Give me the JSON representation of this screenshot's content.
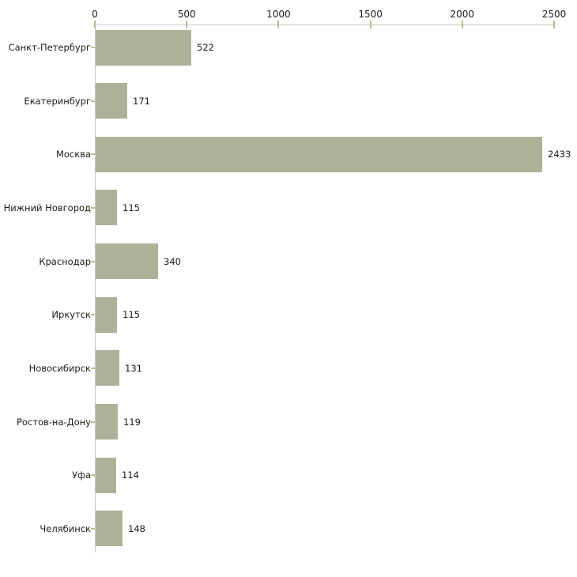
{
  "chart_data": {
    "type": "bar",
    "orientation": "horizontal",
    "title": "",
    "xlabel": "",
    "ylabel": "",
    "categories": [
      "Санкт-Петербург",
      "Екатеринбург",
      "Москва",
      "Нижний Новгород",
      "Краснодар",
      "Иркутск",
      "Новосибирск",
      "Ростов-на-Дону",
      "Уфа",
      "Челябинск"
    ],
    "values": [
      522,
      171,
      2433,
      115,
      340,
      115,
      131,
      119,
      114,
      148
    ],
    "value_labels_shown": true,
    "xlim": [
      0,
      2500
    ],
    "x_ticks": [
      0,
      500,
      1000,
      1500,
      2000,
      2500
    ],
    "x_axis_position": "top",
    "grid": false,
    "legend": "none",
    "colors": {
      "bar_fill": "#acb298",
      "axis_line": "#c9c9c9",
      "tick_mark": "#b9bc8f",
      "text": "#1c1c1c",
      "background": "#ffffff"
    }
  }
}
